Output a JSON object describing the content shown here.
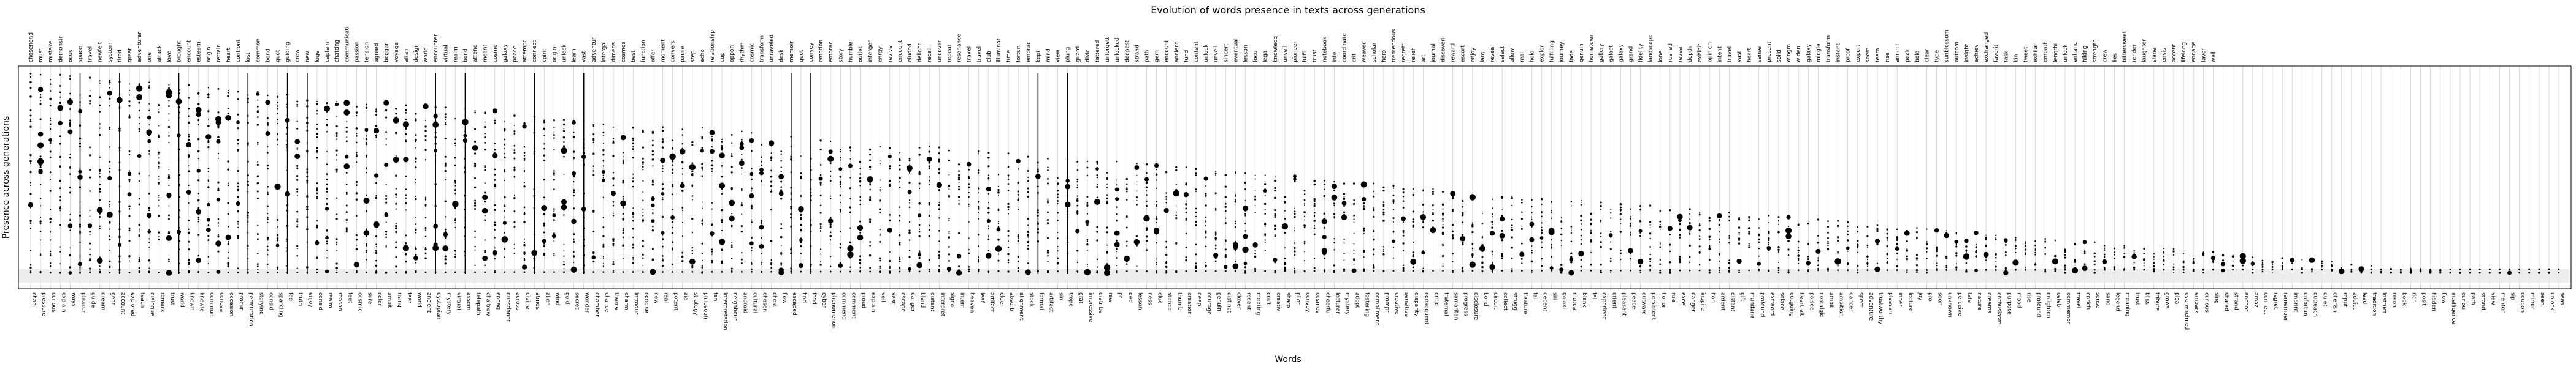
{
  "chart_data": {
    "type": "scatter",
    "title": "Evolution of words presence in texts across generations",
    "xlabel": "Words",
    "ylabel": "Presence across generations",
    "grid": true,
    "legend": "none",
    "top_labels": [
      "chosenend",
      "must",
      "mistake",
      "demonstr",
      "ocus",
      "space",
      "travel",
      "newfelt",
      "system",
      "tired",
      "great",
      "adventurar",
      "one",
      "attack",
      "love",
      "brought",
      "encount",
      "esteem",
      "origin",
      "retrain",
      "heart",
      "confront",
      "lost",
      "common",
      "bond",
      "quot",
      "guiding",
      "crew",
      "new",
      "loge",
      "captain",
      "chatting",
      "communicati",
      "passion",
      "tension",
      "agreed",
      "beggar",
      "voyage",
      "affair",
      "design",
      "world",
      "encounter",
      "virtual",
      "realm",
      "bond",
      "attend",
      "meant",
      "cosmo",
      "galaxy",
      "peace",
      "attempt",
      "connect",
      "spirit",
      "origin",
      "unlock",
      "learn",
      "vast",
      "adventur",
      "intergal",
      "dimens",
      "cosmos",
      "best",
      "function",
      "offer",
      "moment",
      "convers",
      "pause",
      "step",
      "echo",
      "relationship",
      "cup",
      "oppon",
      "rhythm",
      "cosmic",
      "transform",
      "unraveled",
      "desk",
      "memoir",
      "quot",
      "convey",
      "emotion",
      "embrac",
      "story",
      "humble",
      "outlet",
      "intergen",
      "enrgy",
      "revive",
      "encount",
      "eluded",
      "delight",
      "recall",
      "uncover",
      "repeat",
      "resonance",
      "travel",
      "travel",
      "club",
      "illuminat",
      "time",
      "fortun",
      "embrac",
      "kept",
      "mind",
      "view",
      "plung",
      "guard",
      "divid",
      "tattered",
      "unforgett",
      "unlocked",
      "deepest",
      "strand",
      "path",
      "gem",
      "encount",
      "ancient",
      "fund",
      "content",
      "unlock",
      "unveil",
      "sincert",
      "eventual",
      "lesson",
      "focu",
      "legal",
      "knowledg",
      "unveil",
      "pioneer",
      "fulfil",
      "trust",
      "notebook",
      "intel",
      "coordinate",
      "crit",
      "weaved",
      "scholar",
      "hero",
      "tremendous",
      "regrett",
      "relief",
      "art",
      "journal",
      "discoveri",
      "reward",
      "escort",
      "enjoy",
      "larg",
      "reveal",
      "select",
      "allow",
      "real",
      "hold",
      "explor",
      "fulfilling",
      "journey",
      "fade",
      "genuin",
      "hometown",
      "gallery",
      "galact",
      "galaxy",
      "grand",
      "fidelity",
      "landscape",
      "lone",
      "rushed",
      "reveal",
      "depth",
      "exhibit",
      "opinion",
      "intent",
      "travel",
      "vast",
      "heart",
      "sense",
      "present",
      "solid",
      "wingm",
      "widen",
      "galaxy",
      "mingle",
      "transform",
      "instant",
      "proof",
      "expert",
      "seem",
      "team",
      "rise",
      "annihil",
      "peak",
      "bold",
      "clear",
      "type",
      "sunblossom",
      "outcom",
      "insight",
      "achiev",
      "exchanged",
      "favorit",
      "task",
      "kin",
      "tweet",
      "exhilar",
      "empath",
      "lengthi",
      "unlock",
      "enhanc",
      "hiking",
      "strength",
      "crew",
      "lies",
      "bittersweet",
      "tender",
      "laughter",
      "shine",
      "envis",
      "accent",
      "lifelong",
      "engage",
      "favor",
      "well"
    ],
    "categories": [
      "chao",
      "pressure",
      "curious",
      "explain",
      "ways",
      "pleasur",
      "guide",
      "dream",
      "gear",
      "account",
      "explored",
      "teach",
      "dialogue",
      "remark",
      "trust",
      "world",
      "known",
      "knowle",
      "commun",
      "conceal",
      "occasion",
      "procur",
      "permutation",
      "storyind",
      "consid",
      "sparkling",
      "feel",
      "truth",
      "enjoy",
      "consid",
      "realm",
      "reason",
      "feet",
      "cosmic",
      "sure",
      "color",
      "ambit",
      "rising",
      "feet",
      "world",
      "ancient",
      "dystopian",
      "mystery",
      "virtual",
      "assem",
      "telepath",
      "chaltrow",
      "engag",
      "questionnt",
      "across",
      "divine",
      "atmos",
      "alien",
      "wind",
      "gold",
      "secret",
      "wonder",
      "chamber",
      "chance",
      "theme",
      "charm",
      "introduc",
      "concise",
      "new",
      "real",
      "potent",
      "aid",
      "strategy",
      "philosoph",
      "fan",
      "interpretation",
      "neighbour",
      "android",
      "cultural",
      "chosen",
      "chest",
      "flow",
      "escaped",
      "find",
      "food",
      "cyber",
      "phenomenon",
      "commend",
      "comment",
      "proud",
      "explain",
      "veil",
      "vast",
      "escape",
      "danger",
      "blend",
      "distant",
      "interpret",
      "signal",
      "intern",
      "heaven",
      "leaf",
      "artifact",
      "elder",
      "absorb",
      "alignment",
      "stock",
      "formal",
      "artifact",
      "sin",
      "trope",
      "grat",
      "impressive",
      "diatribe",
      "rew",
      "pr",
      "ded",
      "lesson",
      "ness",
      "clue",
      "stance",
      "thumb",
      "creation",
      "deep",
      "courage",
      "genuin",
      "distinct",
      "clover",
      "recent",
      "meeting",
      "craft",
      "creativ",
      "sharp",
      "pilot",
      "convey",
      "cosmos",
      "cheerful",
      "lecturer",
      "mystery",
      "adopt",
      "fostering",
      "compliment",
      "prompt",
      "creative",
      "sensitive",
      "disparity",
      "consequent",
      "critic",
      "fraternal",
      "samaritan",
      "progress",
      "disclosure",
      "bond",
      "circuit",
      "collect",
      "struggl",
      "ffeature",
      "fail",
      "decent",
      "ski",
      "galaxi",
      "mutual",
      "blank",
      "fell",
      "experienc",
      "orient",
      "pleasant",
      "peace",
      "outward",
      "persistent",
      "honor",
      "rise",
      "excel",
      "danger",
      "inspire",
      "hon",
      "ardent",
      "distant",
      "gift",
      "mundane",
      "profound",
      "extraord",
      "solace",
      "outgoing",
      "heartfelt",
      "poised",
      "nostalgic",
      "ambit",
      "ambition",
      "dancer",
      "spect",
      "adventure",
      "trustworthy",
      "pleasan",
      "inner",
      "lecture",
      "joy",
      "pro",
      "soon",
      "unknown",
      "perceive",
      "tale",
      "nature",
      "dreams",
      "enthusiasm",
      "purpose",
      "mood",
      "rise",
      "profound",
      "enlighten",
      "celebr",
      "commemor",
      "travel",
      "enrich",
      "sense",
      "sand",
      "legend",
      "meaning",
      "trust",
      "bliss",
      "tribute",
      "grows",
      "plea",
      "overwhelmed",
      "embark",
      "curious",
      "sing",
      "shared",
      "strand",
      "anchor",
      "amaz",
      "connect",
      "regret",
      "remember",
      "imprint",
      "unfortun",
      "outreach",
      "quiet",
      "cherish",
      "reput",
      "addict",
      "lead",
      "tradition",
      "instruct",
      "reson",
      "book",
      "rich",
      "posit",
      "hidden",
      "flow",
      "intelligence",
      "curiou",
      "path",
      "strand",
      "view",
      "mentor",
      "sip",
      "coupon",
      "mirror",
      "seen",
      "unlock",
      "seas"
    ]
  }
}
